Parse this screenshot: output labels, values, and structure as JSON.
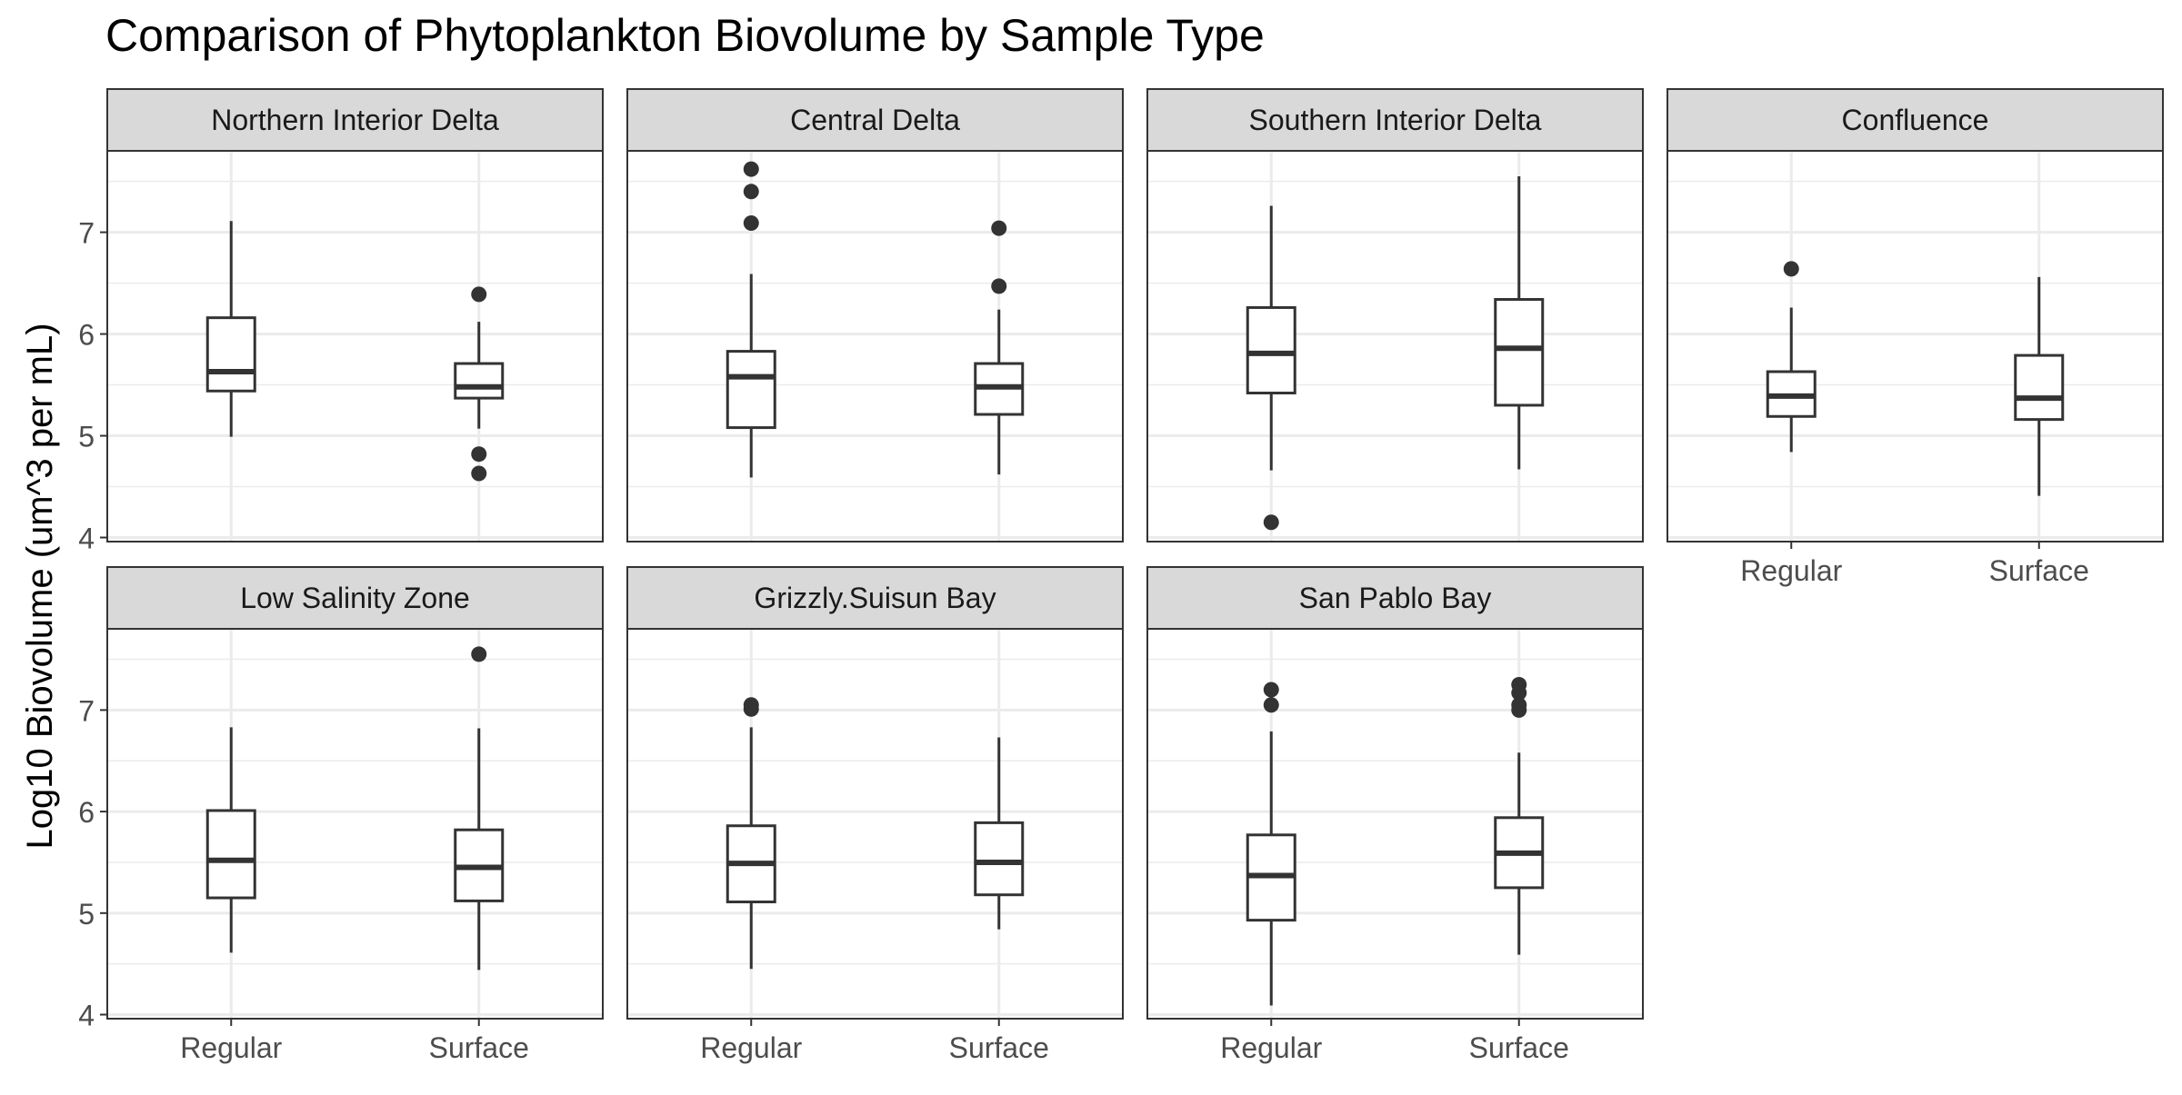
{
  "chart_data": {
    "type": "box",
    "title": "Comparison of Phytoplankton Biovolume by Sample Type",
    "xlabel": "",
    "ylabel": "Log10 Biovolume (um^3 per mL)",
    "categories": [
      "Regular",
      "Surface"
    ],
    "ylim": [
      3.96,
      7.8
    ],
    "y_ticks": [
      4,
      5,
      6,
      7
    ],
    "grid": true,
    "facets": [
      {
        "name": "Northern Interior Delta",
        "boxes": [
          {
            "category": "Regular",
            "lower_whisker": 4.99,
            "q1": 5.44,
            "median": 5.63,
            "q3": 6.16,
            "upper_whisker": 7.11,
            "outliers": []
          },
          {
            "category": "Surface",
            "lower_whisker": 5.07,
            "q1": 5.37,
            "median": 5.48,
            "q3": 5.71,
            "upper_whisker": 6.12,
            "outliers": [
              6.39,
              4.82,
              4.63
            ]
          }
        ]
      },
      {
        "name": "Central Delta",
        "boxes": [
          {
            "category": "Regular",
            "lower_whisker": 4.59,
            "q1": 5.08,
            "median": 5.58,
            "q3": 5.83,
            "upper_whisker": 6.59,
            "outliers": [
              7.62,
              7.4,
              7.09
            ]
          },
          {
            "category": "Surface",
            "lower_whisker": 4.62,
            "q1": 5.21,
            "median": 5.48,
            "q3": 5.71,
            "upper_whisker": 6.24,
            "outliers": [
              7.04,
              6.47
            ]
          }
        ]
      },
      {
        "name": "Southern Interior Delta",
        "boxes": [
          {
            "category": "Regular",
            "lower_whisker": 4.66,
            "q1": 5.42,
            "median": 5.81,
            "q3": 6.26,
            "upper_whisker": 7.26,
            "outliers": [
              4.15
            ]
          },
          {
            "category": "Surface",
            "lower_whisker": 4.67,
            "q1": 5.3,
            "median": 5.86,
            "q3": 6.34,
            "upper_whisker": 7.55,
            "outliers": []
          }
        ]
      },
      {
        "name": "Confluence",
        "boxes": [
          {
            "category": "Regular",
            "lower_whisker": 4.84,
            "q1": 5.19,
            "median": 5.39,
            "q3": 5.63,
            "upper_whisker": 6.26,
            "outliers": [
              6.64
            ]
          },
          {
            "category": "Surface",
            "lower_whisker": 4.41,
            "q1": 5.16,
            "median": 5.37,
            "q3": 5.79,
            "upper_whisker": 6.56,
            "outliers": []
          }
        ]
      },
      {
        "name": "Low Salinity Zone",
        "boxes": [
          {
            "category": "Regular",
            "lower_whisker": 4.61,
            "q1": 5.15,
            "median": 5.52,
            "q3": 6.01,
            "upper_whisker": 6.83,
            "outliers": []
          },
          {
            "category": "Surface",
            "lower_whisker": 4.44,
            "q1": 5.12,
            "median": 5.45,
            "q3": 5.82,
            "upper_whisker": 6.82,
            "outliers": [
              7.55
            ]
          }
        ]
      },
      {
        "name": "Grizzly.Suisun Bay",
        "boxes": [
          {
            "category": "Regular",
            "lower_whisker": 4.45,
            "q1": 5.11,
            "median": 5.49,
            "q3": 5.86,
            "upper_whisker": 6.83,
            "outliers": [
              7.05,
              7.01
            ]
          },
          {
            "category": "Surface",
            "lower_whisker": 4.84,
            "q1": 5.18,
            "median": 5.5,
            "q3": 5.89,
            "upper_whisker": 6.73,
            "outliers": []
          }
        ]
      },
      {
        "name": "San Pablo Bay",
        "boxes": [
          {
            "category": "Regular",
            "lower_whisker": 4.09,
            "q1": 4.93,
            "median": 5.37,
            "q3": 5.77,
            "upper_whisker": 6.79,
            "outliers": [
              7.2,
              7.05
            ]
          },
          {
            "category": "Surface",
            "lower_whisker": 4.59,
            "q1": 5.25,
            "median": 5.59,
            "q3": 5.94,
            "upper_whisker": 6.58,
            "outliers": [
              7.25,
              7.17,
              7.05,
              7.0
            ]
          }
        ]
      }
    ],
    "colors": {
      "box_line": "#333333",
      "box_fill": "#ffffff",
      "strip_fill": "#d9d9d9",
      "grid": "#ebebeb",
      "text": "#000000",
      "tick_text": "#4d4d4d"
    }
  }
}
